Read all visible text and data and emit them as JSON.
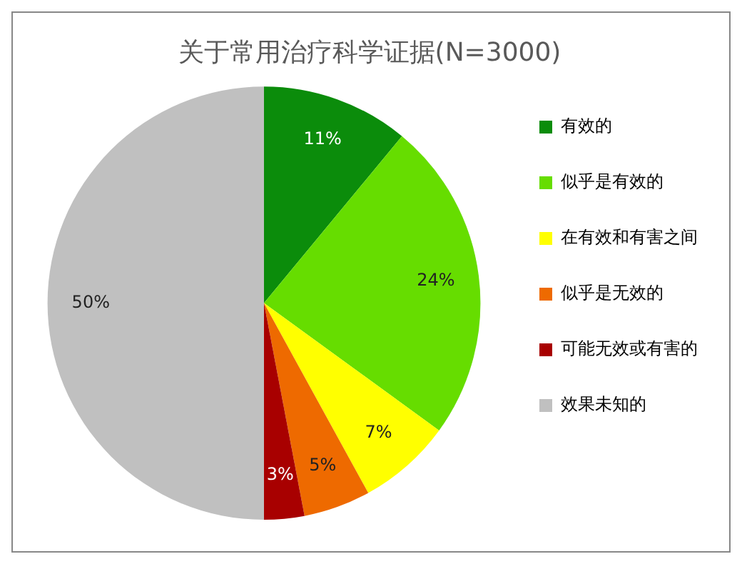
{
  "chart_data": {
    "type": "pie",
    "title": "关于常用治疗科学证据(N=3000)",
    "categories": [
      "有效的",
      "似乎是有效的",
      "在有效和有害之间",
      "似乎是无效的",
      "可能无效或有害的",
      "效果未知的"
    ],
    "values": [
      11,
      24,
      7,
      5,
      3,
      50
    ],
    "colors": [
      "#0b8c0b",
      "#66dd00",
      "#ffff00",
      "#ee6a00",
      "#a80000",
      "#c0c0c0"
    ],
    "value_labels": [
      "11%",
      "24%",
      "7%",
      "5%",
      "3%",
      "50%"
    ],
    "legend": "right"
  }
}
